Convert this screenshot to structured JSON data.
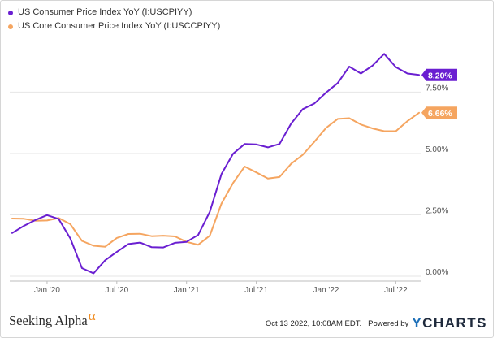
{
  "legend": [
    {
      "label": "US Consumer Price Index YoY (I:USCPIYY)",
      "color": "#6a1fd1"
    },
    {
      "label": "US Core Consumer Price Index YoY (I:USCCPIYY)",
      "color": "#f5a560"
    }
  ],
  "footer": {
    "brand_name": "Seeking Alpha",
    "brand_symbol": "α",
    "timestamp": "Oct 13 2022, 10:08AM EDT.",
    "powered_by": "Powered by",
    "logo_y": "Y",
    "logo_rest": "CHARTS"
  },
  "chart_data": {
    "type": "line",
    "x": [
      "2019-10",
      "2019-11",
      "2019-12",
      "2020-01",
      "2020-02",
      "2020-03",
      "2020-04",
      "2020-05",
      "2020-06",
      "2020-07",
      "2020-08",
      "2020-09",
      "2020-10",
      "2020-11",
      "2020-12",
      "2021-01",
      "2021-02",
      "2021-03",
      "2021-04",
      "2021-05",
      "2021-06",
      "2021-07",
      "2021-08",
      "2021-09",
      "2021-10",
      "2021-11",
      "2021-12",
      "2022-01",
      "2022-02",
      "2022-03",
      "2022-04",
      "2022-05",
      "2022-06",
      "2022-07",
      "2022-08",
      "2022-09"
    ],
    "x_ticks": [
      {
        "label": "Jan '20",
        "at": "2020-01"
      },
      {
        "label": "Jul '20",
        "at": "2020-07"
      },
      {
        "label": "Jan '21",
        "at": "2021-01"
      },
      {
        "label": "Jul '21",
        "at": "2021-07"
      },
      {
        "label": "Jan '22",
        "at": "2022-01"
      },
      {
        "label": "Jul '22",
        "at": "2022-07"
      }
    ],
    "y_ticks": [
      {
        "value": 0,
        "label": "0.00%"
      },
      {
        "value": 2.5,
        "label": "2.50%"
      },
      {
        "value": 5,
        "label": "5.00%"
      },
      {
        "value": 7.5,
        "label": "7.50%"
      }
    ],
    "ylim": [
      -0.1,
      9.6
    ],
    "grid": "horizontal",
    "legend_position": "top-left",
    "series": [
      {
        "name": "US Consumer Price Index YoY (I:USCPIYY)",
        "color": "#6a1fd1",
        "end_label": "8.20%",
        "values": [
          1.76,
          2.05,
          2.29,
          2.49,
          2.33,
          1.54,
          0.33,
          0.12,
          0.65,
          0.99,
          1.31,
          1.37,
          1.18,
          1.17,
          1.36,
          1.4,
          1.68,
          2.62,
          4.16,
          4.99,
          5.39,
          5.37,
          5.25,
          5.39,
          6.22,
          6.81,
          7.04,
          7.48,
          7.87,
          8.54,
          8.26,
          8.58,
          9.06,
          8.52,
          8.26,
          8.2
        ]
      },
      {
        "name": "US Core Consumer Price Index YoY (I:USCCPIYY)",
        "color": "#f5a560",
        "end_label": "6.66%",
        "values": [
          2.35,
          2.34,
          2.26,
          2.27,
          2.37,
          2.12,
          1.44,
          1.24,
          1.2,
          1.56,
          1.72,
          1.73,
          1.63,
          1.65,
          1.62,
          1.4,
          1.28,
          1.65,
          2.96,
          3.8,
          4.47,
          4.23,
          3.98,
          4.04,
          4.58,
          4.95,
          5.48,
          6.04,
          6.41,
          6.44,
          6.18,
          6.02,
          5.91,
          5.91,
          6.32,
          6.66
        ]
      }
    ]
  }
}
